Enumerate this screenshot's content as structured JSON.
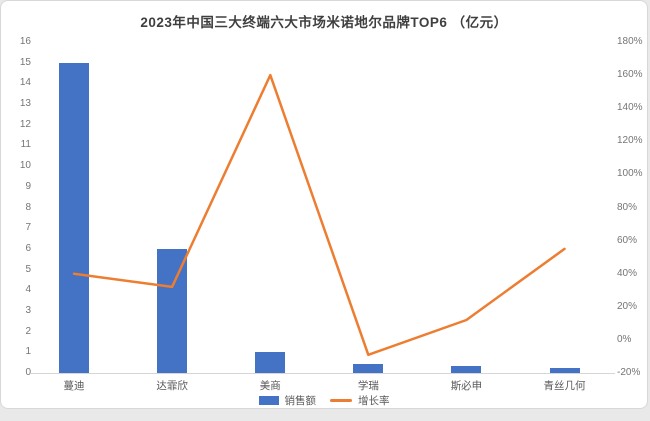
{
  "page": {
    "background": "#e9e9e9",
    "card_background": "#ffffff",
    "card_border": "#d8d8d8"
  },
  "chart_data": {
    "type": "bar",
    "combo": "bar+line",
    "title": "2023年中国三大终端六大市场米诺地尔品牌TOP6 （亿元）",
    "categories": [
      "蔓迪",
      "达霏欣",
      "美商",
      "学瑞",
      "斯必申",
      "青丝几何"
    ],
    "series": [
      {
        "name": "销售额",
        "type": "bar",
        "axis": "left",
        "unit": "亿元",
        "color": "#4472C4",
        "values": [
          15,
          6,
          1,
          0.45,
          0.35,
          0.25
        ]
      },
      {
        "name": "增长率",
        "type": "line",
        "axis": "right",
        "unit": "%",
        "color": "#ED7D31",
        "values": [
          40,
          32,
          160,
          -9,
          12,
          55
        ]
      }
    ],
    "axes": {
      "left": {
        "min": 0,
        "max": 16,
        "step": 1,
        "ticks": [
          "0",
          "1",
          "2",
          "3",
          "4",
          "5",
          "6",
          "7",
          "8",
          "9",
          "10",
          "11",
          "12",
          "13",
          "14",
          "15",
          "16"
        ]
      },
      "right": {
        "min": -20,
        "max": 180,
        "step": 20,
        "suffix": "%",
        "ticks": [
          "-20%",
          "0%",
          "20%",
          "40%",
          "60%",
          "80%",
          "100%",
          "120%",
          "140%",
          "160%",
          "180%"
        ]
      }
    },
    "grid": "off",
    "legend_position": "bottom-center",
    "legend": [
      "销售额",
      "增长率"
    ]
  },
  "colors": {
    "bar": "#4472C4",
    "line": "#ED7D31",
    "title_text": "#3f3f3f",
    "axis_text": "#757575",
    "category_text": "#595959",
    "baseline": "#d6d6d6"
  }
}
